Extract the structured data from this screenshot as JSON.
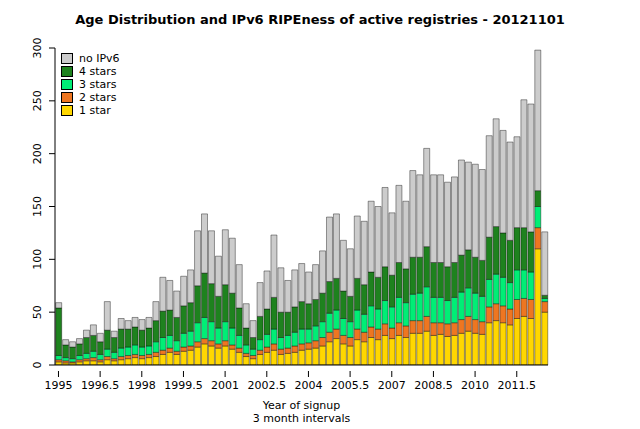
{
  "chart_data": {
    "type": "bar",
    "title": "Age Distribution and IPv6 RIPEness of active registries -  20121101",
    "xlabel": "Year of signup",
    "annotations": [
      "3 month intervals"
    ],
    "stacked": true,
    "legend": "top-left",
    "grid": false,
    "categories": [
      "1995",
      null,
      null,
      null,
      null,
      null,
      "1996.5",
      null,
      null,
      null,
      null,
      null,
      "1998",
      null,
      null,
      null,
      null,
      null,
      "1999.5",
      null,
      null,
      null,
      null,
      null,
      "2001",
      null,
      null,
      null,
      null,
      null,
      "2002.5",
      null,
      null,
      null,
      null,
      null,
      "2004",
      null,
      null,
      null,
      null,
      null,
      "2005.5",
      null,
      null,
      null,
      null,
      null,
      "2007",
      null,
      null,
      null,
      null,
      null,
      "2008.5",
      null,
      null,
      null,
      null,
      null,
      "2010",
      null,
      null,
      null,
      null,
      null,
      "2011.5",
      null,
      null,
      null,
      null
    ],
    "ylim": [
      0,
      300
    ],
    "yticks": [
      0,
      50,
      100,
      150,
      200,
      250,
      300
    ],
    "series": [
      {
        "name": "1 star",
        "color": "#ffd700",
        "values": [
          3,
          2,
          2,
          3,
          4,
          4,
          3,
          5,
          4,
          5,
          6,
          7,
          6,
          7,
          8,
          10,
          12,
          10,
          13,
          14,
          17,
          20,
          18,
          16,
          18,
          15,
          12,
          8,
          6,
          10,
          12,
          14,
          10,
          11,
          12,
          14,
          15,
          16,
          18,
          22,
          25,
          20,
          18,
          24,
          22,
          26,
          24,
          28,
          25,
          28,
          26,
          30,
          30,
          32,
          28,
          29,
          27,
          28,
          30,
          32,
          30,
          29,
          40,
          42,
          40,
          38,
          44,
          46,
          44,
          110,
          50
        ]
      },
      {
        "name": "2 stars",
        "color": "#ee7621",
        "values": [
          2,
          2,
          1,
          2,
          2,
          3,
          2,
          3,
          2,
          3,
          3,
          3,
          3,
          3,
          4,
          4,
          4,
          3,
          4,
          4,
          5,
          5,
          5,
          4,
          5,
          4,
          4,
          3,
          3,
          4,
          5,
          6,
          5,
          5,
          6,
          6,
          6,
          7,
          8,
          9,
          9,
          8,
          8,
          10,
          9,
          10,
          10,
          11,
          10,
          12,
          11,
          12,
          12,
          14,
          12,
          11,
          12,
          12,
          13,
          14,
          13,
          12,
          15,
          16,
          16,
          15,
          18,
          17,
          18,
          20,
          10
        ]
      },
      {
        "name": "3 stars",
        "color": "#00ee76",
        "values": [
          4,
          3,
          3,
          4,
          5,
          6,
          5,
          7,
          6,
          8,
          8,
          9,
          8,
          8,
          10,
          12,
          12,
          10,
          13,
          14,
          18,
          20,
          18,
          15,
          18,
          16,
          12,
          8,
          6,
          10,
          12,
          14,
          11,
          12,
          13,
          14,
          13,
          14,
          15,
          18,
          18,
          16,
          15,
          18,
          17,
          20,
          19,
          22,
          20,
          24,
          22,
          25,
          26,
          28,
          24,
          24,
          22,
          24,
          26,
          27,
          25,
          24,
          26,
          28,
          27,
          25,
          28,
          27,
          26,
          20,
          3
        ]
      },
      {
        "name": "4 stars",
        "color": "#1e821e",
        "values": [
          45,
          12,
          11,
          11,
          15,
          15,
          12,
          18,
          14,
          18,
          17,
          17,
          16,
          17,
          20,
          25,
          24,
          22,
          26,
          27,
          35,
          42,
          36,
          30,
          35,
          33,
          26,
          16,
          11,
          22,
          24,
          30,
          24,
          22,
          24,
          26,
          24,
          25,
          27,
          30,
          30,
          26,
          24,
          30,
          28,
          32,
          30,
          32,
          30,
          33,
          32,
          35,
          34,
          38,
          33,
          33,
          32,
          33,
          35,
          36,
          34,
          34,
          40,
          45,
          42,
          40,
          40,
          40,
          38,
          15,
          3
        ]
      },
      {
        "name": "no IPv6",
        "color": "#cccccc",
        "values": [
          5,
          5,
          5,
          5,
          7,
          10,
          8,
          27,
          6,
          10,
          8,
          9,
          10,
          10,
          18,
          32,
          28,
          25,
          28,
          31,
          52,
          56,
          50,
          38,
          52,
          52,
          41,
          23,
          16,
          32,
          36,
          59,
          42,
          30,
          35,
          36,
          30,
          33,
          40,
          61,
          61,
          48,
          45,
          59,
          60,
          67,
          67,
          75,
          59,
          73,
          64,
          82,
          78,
          93,
          83,
          83,
          80,
          81,
          90,
          83,
          88,
          86,
          96,
          102,
          97,
          93,
          86,
          121,
          121,
          133,
          60
        ]
      }
    ]
  }
}
